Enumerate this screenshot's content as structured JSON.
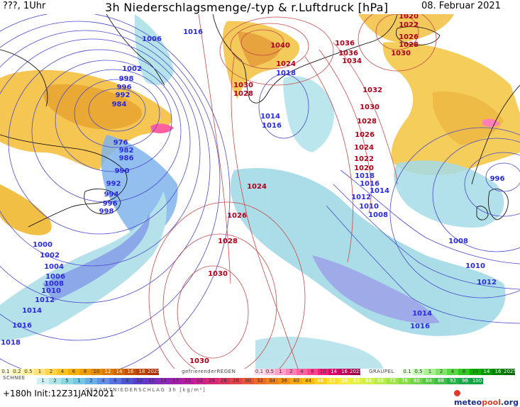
{
  "header": {
    "left": "???, 1Uhr",
    "title": "3h Niederschlagsmenge/-typ & r.Luftdruck [hPa]",
    "date": "08. Februar 2021"
  },
  "map": {
    "pressure_labels": [
      {
        "text": "1016",
        "color": "blue"
      },
      {
        "text": "1006",
        "color": "blue"
      },
      {
        "text": "1002",
        "color": "blue"
      },
      {
        "text": "998",
        "color": "blue"
      },
      {
        "text": "996",
        "color": "blue"
      },
      {
        "text": "992",
        "color": "blue"
      },
      {
        "text": "984",
        "color": "blue"
      },
      {
        "text": "976",
        "color": "blue"
      },
      {
        "text": "982",
        "color": "blue"
      },
      {
        "text": "986",
        "color": "blue"
      },
      {
        "text": "990",
        "color": "blue"
      },
      {
        "text": "992",
        "color": "blue"
      },
      {
        "text": "994",
        "color": "blue"
      },
      {
        "text": "996",
        "color": "blue"
      },
      {
        "text": "998",
        "color": "blue"
      },
      {
        "text": "1000",
        "color": "blue"
      },
      {
        "text": "1002",
        "color": "blue"
      },
      {
        "text": "1004",
        "color": "blue"
      },
      {
        "text": "1006",
        "color": "blue"
      },
      {
        "text": "1008",
        "color": "blue"
      },
      {
        "text": "1010",
        "color": "blue"
      },
      {
        "text": "1012",
        "color": "blue"
      },
      {
        "text": "1014",
        "color": "blue"
      },
      {
        "text": "1016",
        "color": "blue"
      },
      {
        "text": "1018",
        "color": "blue"
      },
      {
        "text": "1024",
        "color": "red"
      },
      {
        "text": "1026",
        "color": "red"
      },
      {
        "text": "1028",
        "color": "red"
      },
      {
        "text": "1030",
        "color": "red"
      },
      {
        "text": "1030",
        "color": "red"
      },
      {
        "text": "1040",
        "color": "red"
      },
      {
        "text": "1024",
        "color": "red"
      },
      {
        "text": "1018",
        "color": "blue"
      },
      {
        "text": "1030",
        "color": "red"
      },
      {
        "text": "1028",
        "color": "red"
      },
      {
        "text": "1014",
        "color": "blue"
      },
      {
        "text": "1016",
        "color": "blue"
      },
      {
        "text": "1036",
        "color": "red"
      },
      {
        "text": "1036",
        "color": "red"
      },
      {
        "text": "1034",
        "color": "red"
      },
      {
        "text": "1032",
        "color": "red"
      },
      {
        "text": "1030",
        "color": "red"
      },
      {
        "text": "1028",
        "color": "red"
      },
      {
        "text": "1026",
        "color": "red"
      },
      {
        "text": "1024",
        "color": "red"
      },
      {
        "text": "1022",
        "color": "red"
      },
      {
        "text": "1020",
        "color": "red"
      },
      {
        "text": "1018",
        "color": "blue"
      },
      {
        "text": "1016",
        "color": "blue"
      },
      {
        "text": "1014",
        "color": "blue"
      },
      {
        "text": "1012",
        "color": "blue"
      },
      {
        "text": "1010",
        "color": "blue"
      },
      {
        "text": "1008",
        "color": "blue"
      },
      {
        "text": "1020",
        "color": "red"
      },
      {
        "text": "1022",
        "color": "red"
      },
      {
        "text": "1026",
        "color": "red"
      },
      {
        "text": "1028",
        "color": "red"
      },
      {
        "text": "1030",
        "color": "red"
      },
      {
        "text": "996",
        "color": "blue"
      },
      {
        "text": "1008",
        "color": "blue"
      },
      {
        "text": "1010",
        "color": "blue"
      },
      {
        "text": "1012",
        "color": "blue"
      },
      {
        "text": "1014",
        "color": "blue"
      },
      {
        "text": "1016",
        "color": "blue"
      }
    ],
    "colors": {
      "high": "#b0001a",
      "low": "#2a2adf",
      "isobar_red": "#c84a48",
      "isobar_blue": "#4a4ad0"
    }
  },
  "legend": {
    "snow": {
      "title": "SCHNEE",
      "values": [
        "0.1",
        "0.2",
        "0.5",
        "1",
        "2",
        "4",
        "6",
        "8",
        "10",
        "12",
        "14",
        "16",
        "18",
        "2025+"
      ],
      "colors": [
        "#fffde0",
        "#fff7b8",
        "#fff0a0",
        "#ffe27a",
        "#ffd34a",
        "#ffc21e",
        "#f5b000",
        "#eea000",
        "#e58c00",
        "#dc7a00",
        "#d06600",
        "#c45000",
        "#b84000",
        "#a83000"
      ]
    },
    "freezing_rain": {
      "title": "gefrierenderREGEN",
      "values": [
        "0.1",
        "0.5",
        "1",
        "2",
        "4",
        "8",
        "10",
        "14",
        "16",
        "2025+"
      ],
      "colors": [
        "#ffe0ec",
        "#ffc0da",
        "#ffa0c8",
        "#ff80b4",
        "#ff60a0",
        "#ff408c",
        "#f0207a",
        "#d80068",
        "#c00058",
        "#a00048"
      ]
    },
    "graupel": {
      "title": "GRAUPEL",
      "values": [
        "0.1",
        "0.5",
        "1",
        "2",
        "4",
        "8",
        "10",
        "14",
        "16",
        "2025+"
      ],
      "colors": [
        "#e8ffe0",
        "#c8f8b8",
        "#a8f090",
        "#80e468",
        "#58d840",
        "#30c820",
        "#10b000",
        "#009800",
        "#008000",
        "#006800"
      ]
    },
    "rain": {
      "values": [
        "1",
        "2",
        "5",
        "1",
        "2",
        "4",
        "6",
        "8",
        "10",
        "12",
        "14",
        "17",
        "20",
        "22",
        "24",
        "26",
        "28",
        "30",
        "32",
        "34",
        "36",
        "40",
        "44",
        "48",
        "52",
        "56",
        "60",
        "64",
        "68",
        "72",
        "76",
        "80",
        "84",
        "88",
        "92",
        "96",
        "100"
      ],
      "colors": [
        "#cfeff0",
        "#aee4e8",
        "#8dd8e0",
        "#74c8e6",
        "#6aaee8",
        "#6090e8",
        "#5872e0",
        "#4e54d6",
        "#5a3ccc",
        "#7030c4",
        "#8a28b8",
        "#a020ac",
        "#b81ca0",
        "#cc2090",
        "#d42878",
        "#dc3460",
        "#e2444a",
        "#e85838",
        "#ec6c28",
        "#f0801c",
        "#f49414",
        "#f8a810",
        "#fabc14",
        "#fcd020",
        "#fce030",
        "#f4ec40",
        "#e4f048",
        "#d0f048",
        "#b8ec48",
        "#a0e448",
        "#88dc48",
        "#70d448",
        "#58c848",
        "#40bc48",
        "#28b048",
        "#18a848",
        "#10a040"
      ]
    },
    "total_label": "GESAMTNIEDERSCHLAG 3h [kg/m²]"
  },
  "footer": {
    "run": "+180h Init:12Z31JAN2021",
    "logo_main": "meteo",
    "logo_accent": "pool",
    "logo_suffix": ".org"
  }
}
